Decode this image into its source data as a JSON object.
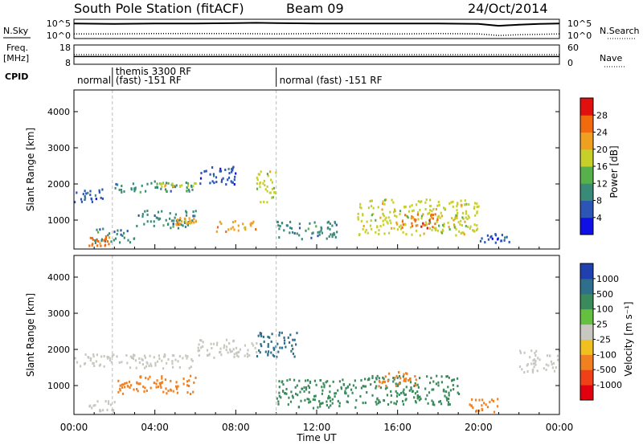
{
  "header": {
    "title": "South Pole Station (fitACF)",
    "beam": "Beam 09",
    "date": "24/Oct/2014"
  },
  "chart_data": [
    {
      "type": "line",
      "panel": "noise",
      "ylabel_left": "N.Sky",
      "ylabel_right": "N.Search",
      "left_ticks": [
        "10^5",
        "10^0"
      ],
      "right_ticks": [
        "10^5",
        "10^0"
      ],
      "xlim": [
        0,
        24
      ],
      "series": [
        {
          "name": "N.Sky",
          "style": "solid",
          "x": [
            0,
            2,
            4,
            6,
            8,
            9,
            10,
            12,
            14,
            16,
            18,
            20,
            21,
            22,
            23,
            24
          ],
          "values": [
            3.9,
            3.8,
            3.9,
            3.9,
            4.0,
            4.1,
            4.0,
            3.9,
            3.9,
            3.9,
            3.9,
            3.8,
            3.3,
            3.6,
            3.8,
            3.9
          ]
        },
        {
          "name": "N.Search",
          "style": "dotted",
          "x": [
            0,
            2,
            4,
            6,
            8,
            10,
            12,
            14,
            16,
            18,
            20,
            21,
            22,
            24
          ],
          "values": [
            1.2,
            1.2,
            1.3,
            1.3,
            1.3,
            1.2,
            1.3,
            1.3,
            1.2,
            1.3,
            1.2,
            0.8,
            1.0,
            1.2
          ]
        }
      ]
    },
    {
      "type": "line",
      "panel": "frequency",
      "ylabel_left_1": "Freq.",
      "ylabel_left_2": "[MHz]",
      "ylabel_right": "Nave",
      "left_ticks": [
        "18",
        "8"
      ],
      "right_ticks": [
        "60",
        "0"
      ],
      "xlim": [
        0,
        24
      ],
      "series": [
        {
          "name": "Freq",
          "style": "solid",
          "x": [
            0,
            24
          ],
          "values": [
            12,
            12
          ]
        },
        {
          "name": "Nave",
          "style": "dotted",
          "x": [
            0,
            24
          ],
          "values": [
            30,
            30
          ]
        }
      ]
    },
    {
      "type": "table",
      "panel": "cpid",
      "label": "CPID",
      "segments": [
        {
          "start": 0,
          "end": 1.9,
          "text1": "normal",
          "text2": ""
        },
        {
          "start": 1.9,
          "end": 10.0,
          "text1": "themis 3300 RF",
          "text2": "(fast) -151 RF"
        },
        {
          "start": 10.0,
          "end": 24,
          "text1": "normal (fast) -151 RF",
          "text2": ""
        }
      ]
    },
    {
      "type": "heatmap",
      "panel": "power",
      "ylabel": "Slant Range [km]",
      "ylim": [
        200,
        4600
      ],
      "yticks": [
        "1000",
        "2000",
        "3000",
        "4000"
      ],
      "xlim": [
        0,
        24
      ],
      "colorbar_label": "Power [dB]",
      "colorbar_ticks": [
        "4",
        "8",
        "12",
        "16",
        "20",
        "24",
        "28"
      ],
      "colorbar_colors": [
        "#1010e6",
        "#2c55b4",
        "#3a8a78",
        "#58b04c",
        "#c7cf2a",
        "#f0a020",
        "#f26a0e",
        "#e0100e"
      ],
      "bands": [
        {
          "x": [
            0,
            1.5
          ],
          "y": [
            1500,
            1900
          ],
          "v": 10
        },
        {
          "x": [
            2,
            6
          ],
          "y": [
            1800,
            2100
          ],
          "v": 12
        },
        {
          "x": [
            4,
            6
          ],
          "y": [
            1950,
            2050
          ],
          "v": 20
        },
        {
          "x": [
            6,
            8
          ],
          "y": [
            2000,
            2500
          ],
          "v": 8
        },
        {
          "x": [
            1,
            3
          ],
          "y": [
            400,
            800
          ],
          "v": 12
        },
        {
          "x": [
            3,
            6
          ],
          "y": [
            800,
            1300
          ],
          "v": 14
        },
        {
          "x": [
            5,
            6
          ],
          "y": [
            900,
            1100
          ],
          "v": 24
        },
        {
          "x": [
            7,
            9
          ],
          "y": [
            700,
            1000
          ],
          "v": 24
        },
        {
          "x": [
            9,
            10
          ],
          "y": [
            1500,
            2400
          ],
          "v": 20
        },
        {
          "x": [
            10,
            13
          ],
          "y": [
            500,
            1000
          ],
          "v": 12
        },
        {
          "x": [
            14,
            20
          ],
          "y": [
            600,
            1600
          ],
          "v": 20
        },
        {
          "x": [
            16,
            18
          ],
          "y": [
            800,
            1200
          ],
          "v": 28
        },
        {
          "x": [
            20,
            21.5
          ],
          "y": [
            400,
            700
          ],
          "v": 10
        },
        {
          "x": [
            0.7,
            1.8
          ],
          "y": [
            300,
            600
          ],
          "v": 28
        }
      ]
    },
    {
      "type": "heatmap",
      "panel": "velocity",
      "ylabel": "Slant Range [km]",
      "ylim": [
        200,
        4600
      ],
      "yticks": [
        "1000",
        "2000",
        "3000",
        "4000"
      ],
      "xlim": [
        0,
        24
      ],
      "xticks": [
        "00:00",
        "04:00",
        "08:00",
        "12:00",
        "16:00",
        "20:00",
        "00:00"
      ],
      "xlabel": "Time UT",
      "colorbar_label": "Velocity [m s⁻¹]",
      "colorbar_ticks": [
        "1000",
        "500",
        "100",
        "25",
        "-25",
        "-100",
        "-500",
        "-1000"
      ],
      "colorbar_colors": [
        "#2040b0",
        "#2f6f8c",
        "#3a8a5c",
        "#66c040",
        "#c8c8c0",
        "#f0c020",
        "#f08020",
        "#f04018",
        "#e00010"
      ],
      "bands": [
        {
          "x": [
            0,
            6
          ],
          "y": [
            1500,
            1900
          ],
          "v": 0
        },
        {
          "x": [
            6,
            9
          ],
          "y": [
            1800,
            2300
          ],
          "v": 0
        },
        {
          "x": [
            2,
            6
          ],
          "y": [
            800,
            1300
          ],
          "v": -300
        },
        {
          "x": [
            0.5,
            2
          ],
          "y": [
            300,
            600
          ],
          "v": 0
        },
        {
          "x": [
            9,
            11
          ],
          "y": [
            1800,
            2500
          ],
          "v": 800
        },
        {
          "x": [
            10,
            14
          ],
          "y": [
            400,
            1200
          ],
          "v": 200
        },
        {
          "x": [
            14,
            19
          ],
          "y": [
            500,
            1300
          ],
          "v": 300
        },
        {
          "x": [
            15,
            17
          ],
          "y": [
            1000,
            1400
          ],
          "v": -150
        },
        {
          "x": [
            19.5,
            21
          ],
          "y": [
            300,
            700
          ],
          "v": -400
        },
        {
          "x": [
            22,
            24
          ],
          "y": [
            1400,
            2000
          ],
          "v": 0
        }
      ]
    }
  ]
}
